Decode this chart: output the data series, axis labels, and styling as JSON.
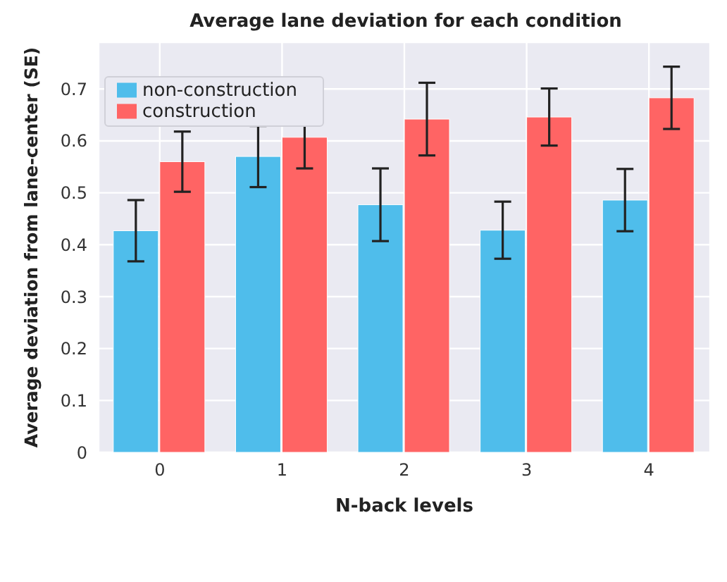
{
  "chart_data": {
    "type": "bar",
    "title": "Average lane deviation for each condition",
    "xlabel": "N-back levels",
    "ylabel": "Average deviation from lane-center (SE)",
    "categories": [
      "0",
      "1",
      "2",
      "3",
      "4"
    ],
    "series": [
      {
        "name": "non-construction",
        "color": "#4fbdeb",
        "values": [
          0.427,
          0.57,
          0.477,
          0.428,
          0.486
        ],
        "errors": [
          0.059,
          0.059,
          0.07,
          0.055,
          0.06
        ]
      },
      {
        "name": "construction",
        "color": "#ff6464",
        "values": [
          0.56,
          0.607,
          0.642,
          0.646,
          0.683
        ],
        "errors": [
          0.058,
          0.06,
          0.07,
          0.055,
          0.06
        ]
      }
    ],
    "ylim": [
      0,
      0.79
    ],
    "yticks": [
      0,
      0.1,
      0.2,
      0.3,
      0.4,
      0.5,
      0.6,
      0.7
    ],
    "grid": true,
    "legend": "top left"
  }
}
